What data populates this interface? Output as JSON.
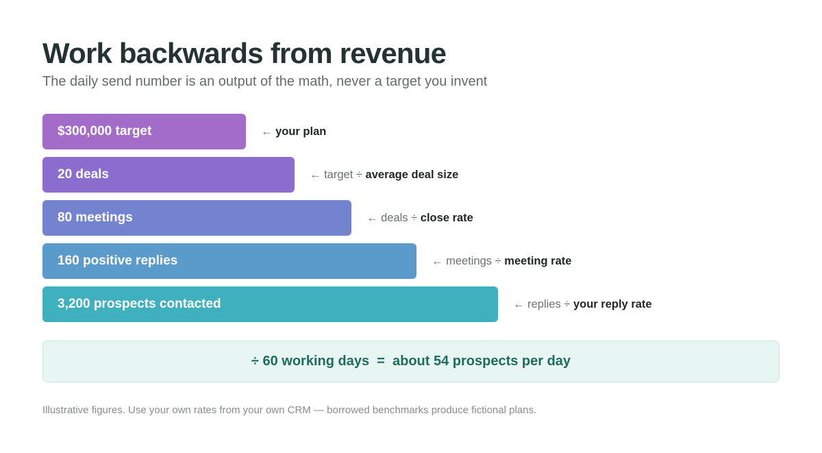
{
  "header": {
    "title": "Work backwards from revenue",
    "subtitle": "The daily send number is an output of the math, never a target you invent"
  },
  "funnel": {
    "steps": [
      {
        "label": "$300,000 target",
        "value": 300000,
        "arrow": "←",
        "note_prefix": "",
        "note_operator": "",
        "note_bold": "your plan",
        "color": "#a36cc8"
      },
      {
        "label": "20 deals",
        "value": 20,
        "arrow": "←",
        "note_prefix": "target",
        "note_operator": "÷",
        "note_bold": "average deal size",
        "color": "#8b6dd0"
      },
      {
        "label": "80 meetings",
        "value": 80,
        "arrow": "←",
        "note_prefix": "deals",
        "note_operator": "÷",
        "note_bold": "close rate",
        "color": "#7483d0"
      },
      {
        "label": "160 positive replies",
        "value": 160,
        "arrow": "←",
        "note_prefix": "meetings",
        "note_operator": "÷",
        "note_bold": "meeting rate",
        "color": "#5b9bcc"
      },
      {
        "label": "3,200 prospects contacted",
        "value": 3200,
        "arrow": "←",
        "note_prefix": "replies",
        "note_operator": "÷",
        "note_bold": "your reply rate",
        "color": "#3fb0bd"
      }
    ]
  },
  "result": {
    "text": "÷ 60 working days  =  about 54 prospects per day"
  },
  "footnote": {
    "text": "Illustrative figures. Use your own rates from your own CRM — borrowed benchmarks produce fictional plans."
  },
  "colors": {
    "title": "#253330",
    "result_text": "#1f6b5f",
    "result_background": "#e8f6f3"
  }
}
